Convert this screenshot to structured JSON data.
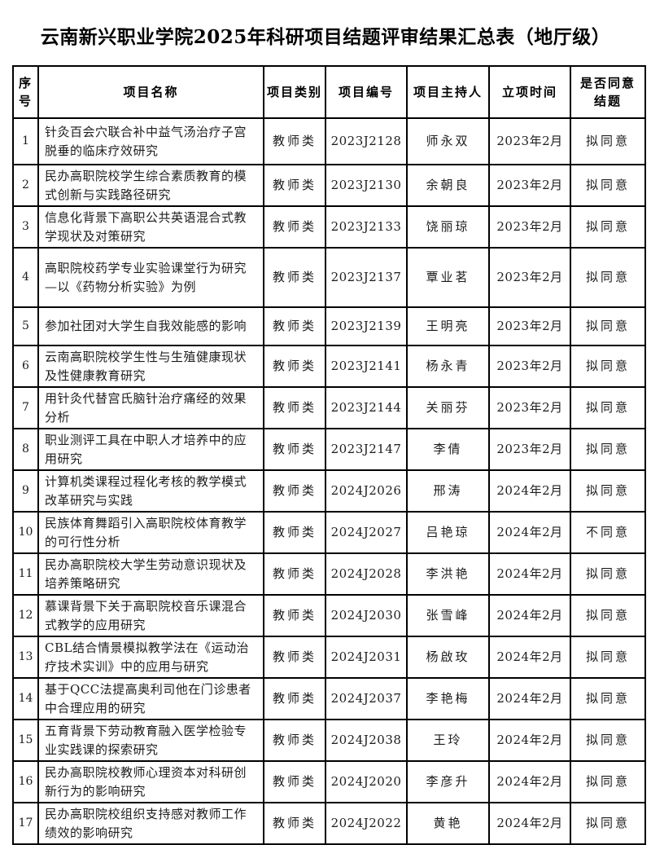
{
  "title": "云南新兴职业学院2025年科研项目结题评审结果汇总表（地厅级）",
  "table": {
    "headers": {
      "no": "序号",
      "name": "项目名称",
      "category": "项目类别",
      "code": "项目编号",
      "leader": "项目主持人",
      "date": "立项时间",
      "result": "是否同意结题"
    },
    "rows": [
      {
        "no": "1",
        "name": "针灸百会穴联合补中益气汤治疗子宫脱垂的临床疗效研究",
        "category": "教师类",
        "code": "2023J2128",
        "leader": "师永双",
        "date": "2023年2月",
        "result": "拟同意"
      },
      {
        "no": "2",
        "name": "民办高职院校学生综合素质教育的模式创新与实践路径研究",
        "category": "教师类",
        "code": "2023J2130",
        "leader": "余朝良",
        "date": "2023年2月",
        "result": "拟同意"
      },
      {
        "no": "3",
        "name": "信息化背景下高职公共英语混合式教学现状及对策研究",
        "category": "教师类",
        "code": "2023J2133",
        "leader": "饶丽琼",
        "date": "2023年2月",
        "result": "拟同意"
      },
      {
        "no": "4",
        "name": "高职院校药学专业实验课堂行为研究—以《药物分析实验》为例",
        "category": "教师类",
        "code": "2023J2137",
        "leader": "覃业茗",
        "date": "2023年2月",
        "result": "拟同意"
      },
      {
        "no": "5",
        "name": "参加社团对大学生自我效能感的影响",
        "category": "教师类",
        "code": "2023J2139",
        "leader": "王明亮",
        "date": "2023年2月",
        "result": "拟同意"
      },
      {
        "no": "6",
        "name": "云南高职院校学生性与生殖健康现状及性健康教育研究",
        "category": "教师类",
        "code": "2023J2141",
        "leader": "杨永青",
        "date": "2023年2月",
        "result": "拟同意"
      },
      {
        "no": "7",
        "name": "用针灸代替宫氏脑针治疗痛经的效果分析",
        "category": "教师类",
        "code": "2023J2144",
        "leader": "关丽芬",
        "date": "2023年2月",
        "result": "拟同意"
      },
      {
        "no": "8",
        "name": "职业测评工具在中职人才培养中的应用研究",
        "category": "教师类",
        "code": "2023J2147",
        "leader": "李倩",
        "date": "2023年2月",
        "result": "拟同意"
      },
      {
        "no": "9",
        "name": "计算机类课程过程化考核的教学模式改革研究与实践",
        "category": "教师类",
        "code": "2024J2026",
        "leader": "邢涛",
        "date": "2024年2月",
        "result": "拟同意"
      },
      {
        "no": "10",
        "name": "民族体育舞蹈引入高职院校体育教学的可行性分析",
        "category": "教师类",
        "code": "2024J2027",
        "leader": "吕艳琼",
        "date": "2024年2月",
        "result": "不同意"
      },
      {
        "no": "11",
        "name": "民办高职院校大学生劳动意识现状及培养策略研究",
        "category": "教师类",
        "code": "2024J2028",
        "leader": "李洪艳",
        "date": "2024年2月",
        "result": "拟同意"
      },
      {
        "no": "12",
        "name": "慕课背景下关于高职院校音乐课混合式教学的应用研究",
        "category": "教师类",
        "code": "2024J2030",
        "leader": "张雪峰",
        "date": "2024年2月",
        "result": "拟同意"
      },
      {
        "no": "13",
        "name": "CBL结合情景模拟教学法在《运动治疗技术实训》中的应用与研究",
        "category": "教师类",
        "code": "2024J2031",
        "leader": "杨啟玫",
        "date": "2024年2月",
        "result": "拟同意"
      },
      {
        "no": "14",
        "name": "基于QCC法提高奥利司他在门诊患者中合理应用的研究",
        "category": "教师类",
        "code": "2024J2037",
        "leader": "李艳梅",
        "date": "2024年2月",
        "result": "拟同意"
      },
      {
        "no": "15",
        "name": "五育背景下劳动教育融入医学检验专业实践课的探索研究",
        "category": "教师类",
        "code": "2024J2038",
        "leader": "王玲",
        "date": "2024年2月",
        "result": "拟同意"
      },
      {
        "no": "16",
        "name": "民办高职院校教师心理资本对科研创新行为的影响研究",
        "category": "教师类",
        "code": "2024J2020",
        "leader": "李彦升",
        "date": "2024年2月",
        "result": "拟同意"
      },
      {
        "no": "17",
        "name": "民办高职院校组织支持感对教师工作绩效的影响研究",
        "category": "教师类",
        "code": "2024J2022",
        "leader": "黄艳",
        "date": "2024年2月",
        "result": "拟同意"
      }
    ]
  }
}
